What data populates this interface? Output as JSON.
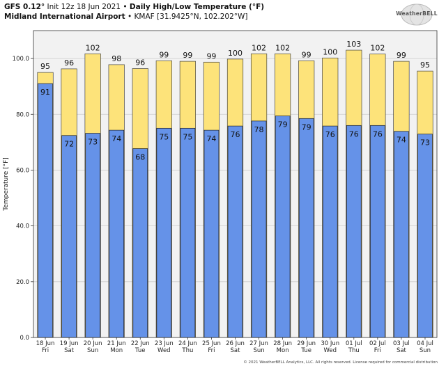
{
  "header": {
    "model": "GFS 0.12",
    "init": "Init 12z 18 Jun 2021",
    "sep": "•",
    "title": "Daily High/Low Temperature (°F)",
    "location": "Midland International Airport",
    "station": "KMAF [31.9425°N, 102.202°W]"
  },
  "logo": {
    "text": "WeatherBELL",
    "icon": "weatherbell-globe-logo"
  },
  "footer": {
    "copyright": "© 2021 WeatherBELL Analytics, LLC. All rights reserved. License required for commercial distribution"
  },
  "colors": {
    "high": "#fde37a",
    "low": "#6592e8",
    "plot_bg": "#f2f2f2",
    "grid": "#cccccc"
  },
  "chart_data": {
    "type": "bar",
    "ylabel": "Temperature [°F]",
    "ylim": [
      0,
      110
    ],
    "yticks": [
      "0.0",
      "20.0",
      "40.0",
      "60.0",
      "80.0",
      "100.0"
    ],
    "grid": true,
    "categories": [
      [
        "18 Jun",
        "Fri"
      ],
      [
        "19 Jun",
        "Sat"
      ],
      [
        "20 Jun",
        "Sun"
      ],
      [
        "21 Jun",
        "Mon"
      ],
      [
        "22 Jun",
        "Tue"
      ],
      [
        "23 Jun",
        "Wed"
      ],
      [
        "24 Jun",
        "Thu"
      ],
      [
        "25 Jun",
        "Fri"
      ],
      [
        "26 Jun",
        "Sat"
      ],
      [
        "27 Jun",
        "Sun"
      ],
      [
        "28 Jun",
        "Mon"
      ],
      [
        "29 Jun",
        "Tue"
      ],
      [
        "30 Jun",
        "Wed"
      ],
      [
        "01 Jul",
        "Thu"
      ],
      [
        "02 Jul",
        "Fri"
      ],
      [
        "03 Jul",
        "Sat"
      ],
      [
        "04 Jul",
        "Sun"
      ]
    ],
    "series": [
      {
        "values": [
          95,
          96,
          102,
          98,
          96,
          99,
          99,
          99,
          100,
          102,
          102,
          99,
          100,
          103,
          102,
          99,
          95
        ],
        "bar_values": [
          95,
          96.3,
          101.7,
          97.8,
          96.4,
          99.2,
          99.0,
          98.7,
          99.8,
          101.7,
          101.7,
          99.2,
          100.2,
          103.0,
          101.6,
          99.0,
          95.5
        ]
      },
      {
        "values": [
          91,
          72,
          73,
          74,
          68,
          75,
          75,
          74,
          76,
          78,
          79,
          79,
          76,
          76,
          76,
          74,
          73
        ],
        "bar_values": [
          91.0,
          72.4,
          73.2,
          74.3,
          67.7,
          75.0,
          75.0,
          74.3,
          75.8,
          77.6,
          79.4,
          78.5,
          75.8,
          76.0,
          76.0,
          73.9,
          72.9
        ]
      }
    ]
  }
}
